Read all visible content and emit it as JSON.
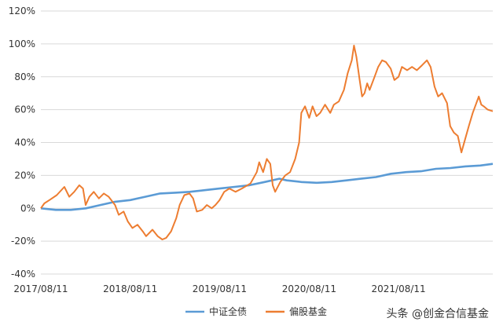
{
  "chart_data": {
    "type": "line",
    "title": "",
    "xlabel": "",
    "ylabel": "",
    "ylim": [
      -40,
      120
    ],
    "y_unit": "%",
    "yticks": [
      -40,
      -20,
      0,
      20,
      40,
      60,
      80,
      100,
      120
    ],
    "ytick_labels": [
      "-40%",
      "-20%",
      "0%",
      "20%",
      "40%",
      "60%",
      "80%",
      "100%",
      "120%"
    ],
    "xlim": [
      "2017-08-11",
      "2022-08-31"
    ],
    "xticks": [
      "2017-08-11",
      "2018-08-11",
      "2019-08-11",
      "2020-08-11",
      "2021-08-11"
    ],
    "xtick_labels": [
      "2017/08/11",
      "2018/08/11",
      "2019/08/11",
      "2020/08/11",
      "2021/08/11"
    ],
    "grid": "horizontal",
    "legend_position": "bottom",
    "series": [
      {
        "name": "中证全债",
        "color": "#5B9BD5",
        "points": [
          [
            "2017-08-11",
            0
          ],
          [
            "2017-10-11",
            -1
          ],
          [
            "2017-12-11",
            -1
          ],
          [
            "2018-02-11",
            0
          ],
          [
            "2018-04-11",
            2
          ],
          [
            "2018-06-11",
            4
          ],
          [
            "2018-08-11",
            5
          ],
          [
            "2018-10-11",
            7
          ],
          [
            "2018-12-11",
            9
          ],
          [
            "2019-02-11",
            9.5
          ],
          [
            "2019-04-11",
            10
          ],
          [
            "2019-06-11",
            11
          ],
          [
            "2019-08-11",
            12
          ],
          [
            "2019-10-11",
            13
          ],
          [
            "2019-12-11",
            14
          ],
          [
            "2020-02-11",
            16
          ],
          [
            "2020-04-11",
            18
          ],
          [
            "2020-05-11",
            17
          ],
          [
            "2020-07-11",
            16
          ],
          [
            "2020-09-11",
            15.5
          ],
          [
            "2020-11-11",
            16
          ],
          [
            "2021-01-11",
            17
          ],
          [
            "2021-03-11",
            18
          ],
          [
            "2021-05-11",
            19
          ],
          [
            "2021-07-11",
            21
          ],
          [
            "2021-09-11",
            22
          ],
          [
            "2021-11-11",
            22.5
          ],
          [
            "2022-01-11",
            24
          ],
          [
            "2022-03-11",
            24.5
          ],
          [
            "2022-05-11",
            25.5
          ],
          [
            "2022-07-11",
            26
          ],
          [
            "2022-08-31",
            27
          ]
        ]
      },
      {
        "name": "偏股基金",
        "color": "#ED7D31",
        "points": [
          [
            "2017-08-11",
            0
          ],
          [
            "2017-08-25",
            3
          ],
          [
            "2017-09-15",
            5
          ],
          [
            "2017-10-15",
            8
          ],
          [
            "2017-11-15",
            13
          ],
          [
            "2017-12-05",
            7
          ],
          [
            "2017-12-25",
            10
          ],
          [
            "2018-01-15",
            14
          ],
          [
            "2018-01-30",
            12
          ],
          [
            "2018-02-10",
            2
          ],
          [
            "2018-02-25",
            7
          ],
          [
            "2018-03-15",
            10
          ],
          [
            "2018-04-05",
            6
          ],
          [
            "2018-04-25",
            9
          ],
          [
            "2018-05-15",
            7
          ],
          [
            "2018-06-10",
            2
          ],
          [
            "2018-06-25",
            -4
          ],
          [
            "2018-07-15",
            -2
          ],
          [
            "2018-08-01",
            -8
          ],
          [
            "2018-08-20",
            -12
          ],
          [
            "2018-09-10",
            -10
          ],
          [
            "2018-10-01",
            -14
          ],
          [
            "2018-10-15",
            -17
          ],
          [
            "2018-11-10",
            -13
          ],
          [
            "2018-12-01",
            -17
          ],
          [
            "2018-12-20",
            -19
          ],
          [
            "2019-01-05",
            -18
          ],
          [
            "2019-01-25",
            -14
          ],
          [
            "2019-02-15",
            -6
          ],
          [
            "2019-03-01",
            2
          ],
          [
            "2019-03-20",
            8
          ],
          [
            "2019-04-10",
            9
          ],
          [
            "2019-04-25",
            6
          ],
          [
            "2019-05-10",
            -2
          ],
          [
            "2019-06-01",
            -1
          ],
          [
            "2019-06-20",
            2
          ],
          [
            "2019-07-10",
            0
          ],
          [
            "2019-07-25",
            2
          ],
          [
            "2019-08-11",
            5
          ],
          [
            "2019-08-30",
            10
          ],
          [
            "2019-09-20",
            12
          ],
          [
            "2019-10-15",
            10
          ],
          [
            "2019-11-10",
            12
          ],
          [
            "2019-12-15",
            15
          ],
          [
            "2020-01-10",
            22
          ],
          [
            "2020-01-20",
            28
          ],
          [
            "2020-02-05",
            22
          ],
          [
            "2020-02-20",
            30
          ],
          [
            "2020-03-05",
            27
          ],
          [
            "2020-03-15",
            14
          ],
          [
            "2020-03-25",
            10
          ],
          [
            "2020-04-15",
            16
          ],
          [
            "2020-05-05",
            20
          ],
          [
            "2020-05-25",
            22
          ],
          [
            "2020-06-15",
            30
          ],
          [
            "2020-07-01",
            40
          ],
          [
            "2020-07-10",
            58
          ],
          [
            "2020-07-25",
            62
          ],
          [
            "2020-08-11",
            55
          ],
          [
            "2020-08-25",
            62
          ],
          [
            "2020-09-10",
            56
          ],
          [
            "2020-09-25",
            58
          ],
          [
            "2020-10-15",
            63
          ],
          [
            "2020-11-05",
            58
          ],
          [
            "2020-11-20",
            63
          ],
          [
            "2020-12-10",
            65
          ],
          [
            "2020-12-31",
            72
          ],
          [
            "2021-01-15",
            82
          ],
          [
            "2021-02-01",
            90
          ],
          [
            "2021-02-10",
            99
          ],
          [
            "2021-02-20",
            92
          ],
          [
            "2021-03-05",
            78
          ],
          [
            "2021-03-15",
            68
          ],
          [
            "2021-03-25",
            70
          ],
          [
            "2021-04-05",
            76
          ],
          [
            "2021-04-15",
            72
          ],
          [
            "2021-05-05",
            80
          ],
          [
            "2021-05-20",
            86
          ],
          [
            "2021-06-05",
            90
          ],
          [
            "2021-06-20",
            89
          ],
          [
            "2021-07-10",
            85
          ],
          [
            "2021-07-25",
            78
          ],
          [
            "2021-08-11",
            80
          ],
          [
            "2021-08-25",
            86
          ],
          [
            "2021-09-15",
            84
          ],
          [
            "2021-10-05",
            86
          ],
          [
            "2021-10-25",
            84
          ],
          [
            "2021-11-15",
            87
          ],
          [
            "2021-12-05",
            90
          ],
          [
            "2021-12-20",
            86
          ],
          [
            "2022-01-05",
            74
          ],
          [
            "2022-01-20",
            68
          ],
          [
            "2022-02-05",
            70
          ],
          [
            "2022-02-25",
            64
          ],
          [
            "2022-03-10",
            50
          ],
          [
            "2022-03-25",
            46
          ],
          [
            "2022-04-10",
            44
          ],
          [
            "2022-04-25",
            34
          ],
          [
            "2022-05-10",
            42
          ],
          [
            "2022-05-25",
            50
          ],
          [
            "2022-06-10",
            58
          ],
          [
            "2022-06-25",
            64
          ],
          [
            "2022-07-05",
            68
          ],
          [
            "2022-07-15",
            63
          ],
          [
            "2022-07-25",
            62
          ],
          [
            "2022-08-10",
            60
          ],
          [
            "2022-08-31",
            59
          ]
        ]
      }
    ]
  },
  "watermark": "头条 @创金合信基金"
}
